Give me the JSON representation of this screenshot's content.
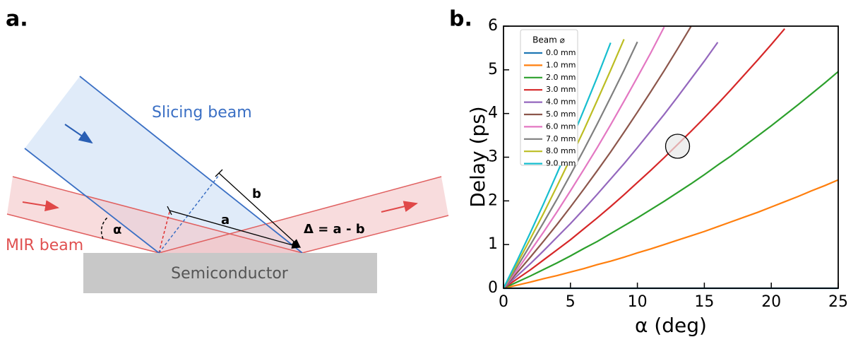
{
  "diagram": {
    "panel_label": "a.",
    "slicing_beam": "Slicing beam",
    "mir_beam": "MIR beam",
    "substrate": "Semiconductor",
    "angle": "α",
    "path_a": "a",
    "path_b": "b",
    "delta": "Δ = a - b"
  },
  "chart_data": {
    "type": "line",
    "panel_label": "b.",
    "x_label": "α (deg)",
    "y_label": "Delay (ps)",
    "legend_title": "Beam ⌀",
    "legend": "upper left",
    "x": [
      0,
      1,
      2,
      3,
      4,
      5,
      6,
      7,
      8,
      9,
      10,
      11,
      12,
      13,
      14,
      15,
      16,
      17,
      18,
      19,
      20,
      21,
      22,
      23,
      24,
      25
    ],
    "xlim": [
      0,
      25
    ],
    "xticks": [
      0,
      5,
      10,
      15,
      20,
      25
    ],
    "ylim": [
      0,
      6
    ],
    "yticks": [
      0,
      1,
      2,
      3,
      4,
      5,
      6
    ],
    "series": [
      {
        "name": "0.0 mm",
        "color": "#1f77b4",
        "values": [
          0,
          0,
          0,
          0,
          0,
          0,
          0,
          0,
          0,
          0,
          0,
          0,
          0,
          0,
          0,
          0,
          0,
          0,
          0,
          0,
          0,
          0,
          0,
          0,
          0,
          0
        ]
      },
      {
        "name": "1.0 mm",
        "color": "#ff7f0e",
        "values": [
          0,
          0.07,
          0.14,
          0.22,
          0.29,
          0.37,
          0.45,
          0.54,
          0.62,
          0.71,
          0.81,
          0.9,
          1.0,
          1.1,
          1.2,
          1.3,
          1.41,
          1.52,
          1.63,
          1.74,
          1.86,
          1.98,
          2.1,
          2.23,
          2.35,
          2.48
        ]
      },
      {
        "name": "2.0 mm",
        "color": "#2ca02c",
        "values": [
          0,
          0.14,
          0.28,
          0.43,
          0.58,
          0.74,
          0.91,
          1.07,
          1.25,
          1.43,
          1.61,
          1.8,
          1.99,
          2.19,
          2.39,
          2.6,
          2.82,
          3.03,
          3.26,
          3.49,
          3.72,
          3.96,
          4.2,
          4.45,
          4.7,
          4.96
        ]
      },
      {
        "name": "3.0 mm",
        "color": "#d62728",
        "values": [
          0,
          0.21,
          0.42,
          0.65,
          0.88,
          1.11,
          1.36,
          1.61,
          1.87,
          2.14,
          2.42,
          2.7,
          2.99,
          3.29,
          3.59,
          3.9,
          4.22,
          4.55,
          4.89,
          5.23,
          5.58,
          5.94,
          null,
          null,
          null,
          null
        ]
      },
      {
        "name": "4.0 mm",
        "color": "#9467bd",
        "values": [
          0,
          0.28,
          0.56,
          0.86,
          1.17,
          1.48,
          1.81,
          2.15,
          2.5,
          2.85,
          3.22,
          3.6,
          3.98,
          4.38,
          4.79,
          5.2,
          5.63,
          null,
          null,
          null,
          null,
          null,
          null,
          null,
          null,
          null
        ]
      },
      {
        "name": "5.0 mm",
        "color": "#8c564b",
        "values": [
          0,
          0.35,
          0.71,
          1.08,
          1.46,
          1.86,
          2.27,
          2.69,
          3.12,
          3.57,
          4.03,
          4.5,
          4.98,
          5.48,
          5.99,
          null,
          null,
          null,
          null,
          null,
          null,
          null,
          null,
          null,
          null,
          null
        ]
      },
      {
        "name": "6.0 mm",
        "color": "#e377c2",
        "values": [
          0,
          0.41,
          0.85,
          1.29,
          1.75,
          2.23,
          2.72,
          3.22,
          3.74,
          4.28,
          4.83,
          5.39,
          5.98,
          null,
          null,
          null,
          null,
          null,
          null,
          null,
          null,
          null,
          null,
          null,
          null,
          null
        ]
      },
      {
        "name": "7.0 mm",
        "color": "#7f7f7f",
        "values": [
          0,
          0.48,
          0.99,
          1.51,
          2.04,
          2.6,
          3.17,
          3.76,
          4.37,
          4.99,
          5.64,
          null,
          null,
          null,
          null,
          null,
          null,
          null,
          null,
          null,
          null,
          null,
          null,
          null,
          null,
          null
        ]
      },
      {
        "name": "8.0 mm",
        "color": "#bcbd22",
        "values": [
          0,
          0.55,
          1.13,
          1.72,
          2.34,
          2.97,
          3.62,
          4.3,
          4.99,
          5.7,
          null,
          null,
          null,
          null,
          null,
          null,
          null,
          null,
          null,
          null,
          null,
          null,
          null,
          null,
          null,
          null
        ]
      },
      {
        "name": "9.0 mm",
        "color": "#17becf",
        "values": [
          0,
          0.62,
          1.27,
          1.94,
          2.63,
          3.34,
          4.08,
          4.83,
          5.62,
          null,
          null,
          null,
          null,
          null,
          null,
          null,
          null,
          null,
          null,
          null,
          null,
          null,
          null,
          null,
          null,
          null
        ]
      }
    ]
  }
}
